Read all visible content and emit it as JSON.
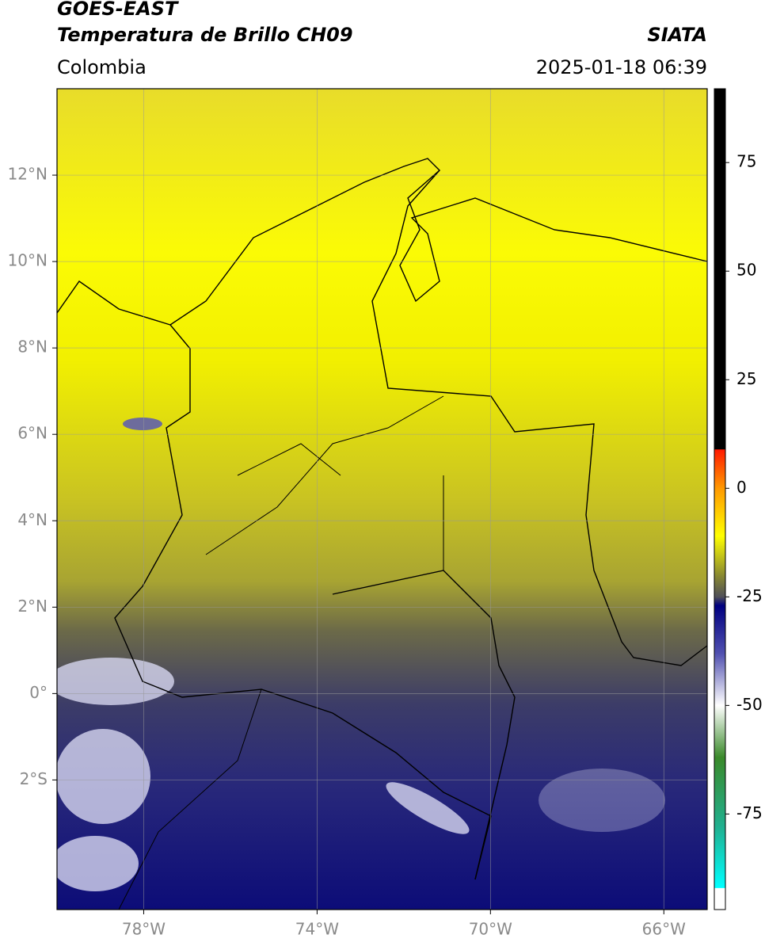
{
  "header": {
    "title": "GOES-EAST",
    "subtitle": "Temperatura de Brillo CH09",
    "source": "SIATA",
    "region": "Colombia",
    "datetime": "2025-01-18 06:39"
  },
  "map": {
    "xlim": [
      -80,
      -65
    ],
    "ylim": [
      -5,
      14
    ],
    "xticks": [
      {
        "value": -78,
        "label": "78°W"
      },
      {
        "value": -74,
        "label": "74°W"
      },
      {
        "value": -70,
        "label": "70°W"
      },
      {
        "value": -66,
        "label": "66°W"
      }
    ],
    "yticks": [
      {
        "value": 12,
        "label": "12°N"
      },
      {
        "value": 10,
        "label": "10°N"
      },
      {
        "value": 8,
        "label": "8°N"
      },
      {
        "value": 6,
        "label": "6°N"
      },
      {
        "value": 4,
        "label": "4°N"
      },
      {
        "value": 2,
        "label": "2°N"
      },
      {
        "value": 0,
        "label": "0°"
      },
      {
        "value": -2,
        "label": "2°S"
      }
    ],
    "grid": true
  },
  "colorbar": {
    "lim": [
      -97,
      92
    ],
    "ticks": [
      75,
      50,
      25,
      0,
      -25,
      -50,
      -75
    ],
    "colormap": [
      {
        "value": 92,
        "color": "#000000"
      },
      {
        "value": 9,
        "color": "#000000"
      },
      {
        "value": 8.9,
        "color": "#ff1a00"
      },
      {
        "value": 0,
        "color": "#ff9900"
      },
      {
        "value": -11,
        "color": "#ffff00"
      },
      {
        "value": -20,
        "color": "#8a8a30"
      },
      {
        "value": -25,
        "color": "#505058"
      },
      {
        "value": -27,
        "color": "#000080"
      },
      {
        "value": -38,
        "color": "#5050b0"
      },
      {
        "value": -50,
        "color": "#ffffff"
      },
      {
        "value": -62,
        "color": "#3a8a2a"
      },
      {
        "value": -78,
        "color": "#20b090"
      },
      {
        "value": -92,
        "color": "#00ffff"
      },
      {
        "value": -92.1,
        "color": "#ffffff"
      },
      {
        "value": -97,
        "color": "#ffffff"
      }
    ]
  }
}
